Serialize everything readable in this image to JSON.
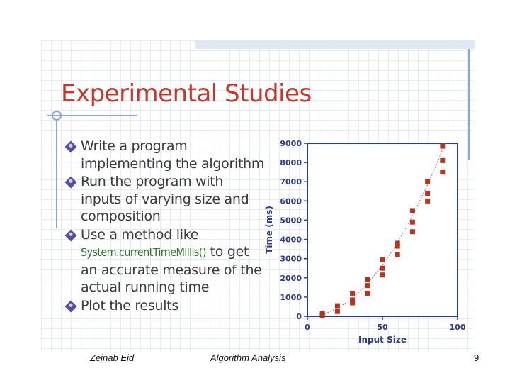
{
  "slide": {
    "title": "Experimental Studies",
    "bullets": [
      {
        "text": "Write a program implementing the algorithm"
      },
      {
        "text": "Run the program with inputs of varying size and composition"
      },
      {
        "pre": "Use a method like",
        "code": "System.currentTimeMillis()",
        "post": "to get an accurate measure of the actual running time"
      },
      {
        "text": "Plot the results"
      }
    ]
  },
  "footer": {
    "author": "Zeinab Eid",
    "course": "Algorithm Analysis",
    "page": "9"
  },
  "chart_data": {
    "type": "scatter",
    "xlabel": "Input Size",
    "ylabel": "Time (ms)",
    "xlim": [
      0,
      100
    ],
    "ylim": [
      0,
      9000
    ],
    "xticks": [
      "0",
      "50",
      "100"
    ],
    "yticks": [
      "0",
      "1000",
      "2000",
      "3000",
      "4000",
      "5000",
      "6000",
      "7000",
      "8000",
      "9000"
    ],
    "grid": false,
    "trend": "quadratic (dotted)",
    "colors": {
      "points": "#b5361c",
      "axes": "#2b3a8c",
      "trend": "#a07a9a"
    },
    "points": [
      {
        "x": 10,
        "y": 50
      },
      {
        "x": 10,
        "y": 150
      },
      {
        "x": 20,
        "y": 250
      },
      {
        "x": 20,
        "y": 550
      },
      {
        "x": 30,
        "y": 700
      },
      {
        "x": 30,
        "y": 850
      },
      {
        "x": 30,
        "y": 1200
      },
      {
        "x": 40,
        "y": 1200
      },
      {
        "x": 40,
        "y": 1600
      },
      {
        "x": 40,
        "y": 1900
      },
      {
        "x": 50,
        "y": 2150
      },
      {
        "x": 50,
        "y": 2500
      },
      {
        "x": 50,
        "y": 2950
      },
      {
        "x": 60,
        "y": 3200
      },
      {
        "x": 60,
        "y": 3650
      },
      {
        "x": 60,
        "y": 3800
      },
      {
        "x": 70,
        "y": 4400
      },
      {
        "x": 70,
        "y": 4900
      },
      {
        "x": 70,
        "y": 5500
      },
      {
        "x": 80,
        "y": 6000
      },
      {
        "x": 80,
        "y": 6400
      },
      {
        "x": 80,
        "y": 7000
      },
      {
        "x": 90,
        "y": 7500
      },
      {
        "x": 90,
        "y": 8100
      },
      {
        "x": 90,
        "y": 8850
      }
    ]
  }
}
